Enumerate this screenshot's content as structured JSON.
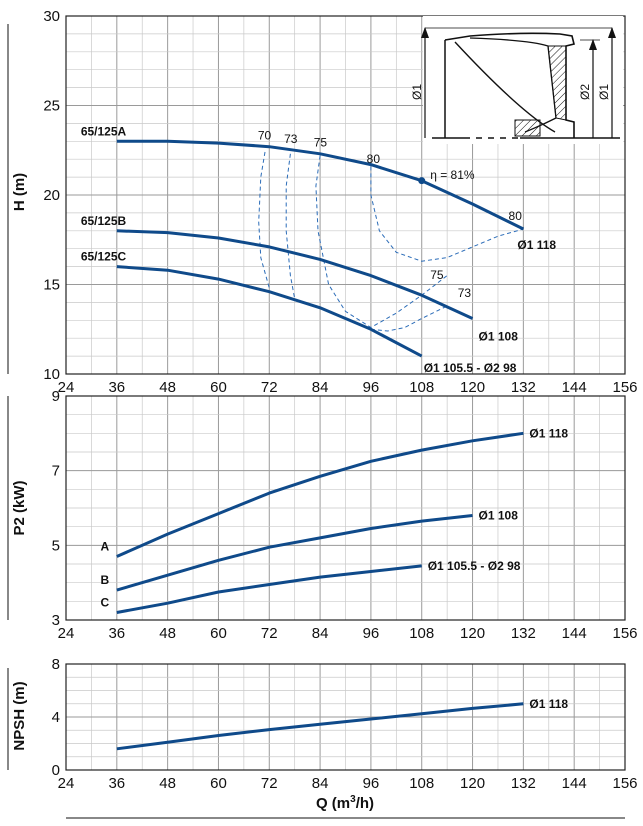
{
  "chart_data": [
    {
      "type": "line",
      "ylabel": "H (m)",
      "xlim": [
        24,
        156
      ],
      "ylim": [
        10,
        30
      ],
      "x_ticks": [
        "24",
        "36",
        "48",
        "60",
        "72",
        "84",
        "96",
        "108",
        "120",
        "132",
        "144",
        "156"
      ],
      "y_ticks": [
        "10",
        "15",
        "20",
        "25",
        "30"
      ],
      "grid": true,
      "series": [
        {
          "name": "65/125A",
          "end_label": "Ø1 118",
          "x": [
            36,
            48,
            60,
            72,
            84,
            96,
            108,
            120,
            132
          ],
          "y": [
            23.0,
            23.0,
            22.9,
            22.7,
            22.3,
            21.7,
            20.8,
            19.5,
            18.1
          ]
        },
        {
          "name": "65/125B",
          "end_label": "Ø1 108",
          "x": [
            36,
            48,
            60,
            72,
            84,
            96,
            108,
            120
          ],
          "y": [
            18.0,
            17.9,
            17.6,
            17.1,
            16.4,
            15.5,
            14.4,
            13.1
          ]
        },
        {
          "name": "65/125C",
          "end_label": "Ø1 105.5 - Ø2 98",
          "x": [
            36,
            48,
            60,
            72,
            84,
            96,
            108
          ],
          "y": [
            16.0,
            15.8,
            15.3,
            14.6,
            13.7,
            12.5,
            11.0
          ]
        }
      ],
      "efficiency_labels": [
        "70",
        "73",
        "75",
        "80",
        "η = 81%",
        "80",
        "75",
        "73"
      ],
      "best_efficiency_point": {
        "x": 108,
        "y": 20.8
      }
    },
    {
      "type": "line",
      "ylabel": "P2 (kW)",
      "xlim": [
        24,
        156
      ],
      "ylim": [
        3,
        9
      ],
      "x_ticks": [
        "24",
        "36",
        "48",
        "60",
        "72",
        "84",
        "96",
        "108",
        "120",
        "132",
        "144",
        "156"
      ],
      "y_ticks": [
        "3",
        "5",
        "7",
        "9"
      ],
      "grid": true,
      "series": [
        {
          "name": "A",
          "end_label": "Ø1 118",
          "x": [
            36,
            48,
            60,
            72,
            84,
            96,
            108,
            120,
            132
          ],
          "y": [
            4.7,
            5.3,
            5.85,
            6.4,
            6.85,
            7.25,
            7.55,
            7.8,
            8.0
          ]
        },
        {
          "name": "B",
          "end_label": "Ø1 108",
          "x": [
            36,
            48,
            60,
            72,
            84,
            96,
            108,
            120
          ],
          "y": [
            3.8,
            4.2,
            4.6,
            4.95,
            5.2,
            5.45,
            5.65,
            5.8
          ]
        },
        {
          "name": "C",
          "end_label": "Ø1 105.5 - Ø2 98",
          "x": [
            36,
            48,
            60,
            72,
            84,
            96,
            108
          ],
          "y": [
            3.2,
            3.45,
            3.75,
            3.95,
            4.15,
            4.3,
            4.45
          ]
        }
      ]
    },
    {
      "type": "line",
      "ylabel": "NPSH (m)",
      "xlabel_main": "Q (m",
      "xlabel_sup": "3",
      "xlabel_end": "/h)",
      "xlim": [
        24,
        156
      ],
      "ylim": [
        0,
        8
      ],
      "x_ticks": [
        "24",
        "36",
        "48",
        "60",
        "72",
        "84",
        "96",
        "108",
        "120",
        "132",
        "144",
        "156"
      ],
      "y_ticks": [
        "0",
        "4",
        "8"
      ],
      "grid": true,
      "series": [
        {
          "name": "",
          "end_label": "Ø1 118",
          "x": [
            36,
            48,
            60,
            72,
            84,
            96,
            108,
            120,
            132
          ],
          "y": [
            1.6,
            2.1,
            2.6,
            3.05,
            3.45,
            3.85,
            4.25,
            4.65,
            5.0
          ]
        }
      ]
    }
  ],
  "impeller_labels": [
    "Ø1",
    "Ø2",
    "Ø1"
  ],
  "colors": {
    "curve": "#0f4a8a",
    "grid": "#b8b8b8",
    "axis": "#222222"
  }
}
